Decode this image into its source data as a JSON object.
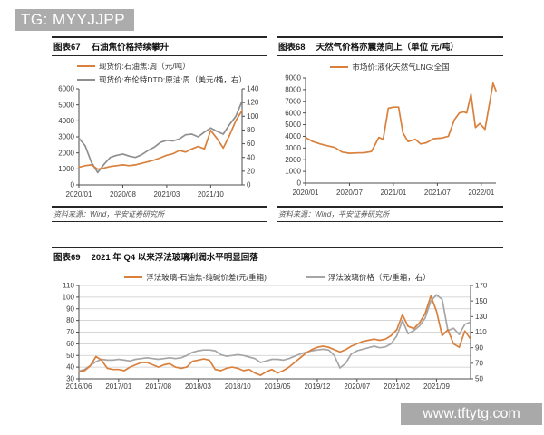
{
  "header": {
    "badge": "TG: MYYJJPP"
  },
  "watermark": {
    "text": "www.tftytg.com"
  },
  "chart_data": [
    {
      "id": "fig67",
      "type": "line",
      "label": "图表67",
      "title": "石油焦价格持续攀升",
      "source": "资料来源：Wind，平安证券研究所",
      "grid": false,
      "xmax": 26,
      "x_ticks": [
        {
          "label": "2020/01",
          "x": 0
        },
        {
          "label": "2020/08",
          "x": 7
        },
        {
          "label": "2021/03",
          "x": 14
        },
        {
          "label": "2021/10",
          "x": 21
        }
      ],
      "left_axis": {
        "ticks": [
          0,
          1000,
          2000,
          3000,
          4000,
          5000,
          6000
        ]
      },
      "right_axis": {
        "ticks": [
          0,
          20,
          40,
          60,
          80,
          100,
          120,
          140
        ]
      },
      "series": [
        {
          "name": "现货价:石油焦:周（元/吨）",
          "color": "#d9803d",
          "axis": "left",
          "values": [
            1100,
            1200,
            1250,
            980,
            1050,
            1150,
            1200,
            1250,
            1200,
            1250,
            1350,
            1450,
            1550,
            1700,
            1850,
            1950,
            2150,
            2050,
            2250,
            2400,
            2250,
            3400,
            2900,
            2300,
            3100,
            4000,
            4650
          ]
        },
        {
          "name": "现货价:布伦特DTD:原油:周（美元/桶，右）",
          "color": "#8f8f8f",
          "axis": "right",
          "values": [
            68,
            57,
            33,
            18,
            30,
            40,
            43,
            45,
            42,
            40,
            44,
            50,
            55,
            62,
            65,
            64,
            67,
            73,
            74,
            70,
            77,
            83,
            78,
            74,
            88,
            100,
            122
          ]
        }
      ]
    },
    {
      "id": "fig68",
      "type": "line",
      "label": "图表68",
      "title": "天然气价格亦震荡向上（单位 元/吨）",
      "source": "资料来源：Wind，平安证券研究所",
      "grid": false,
      "xmax": 26,
      "x_ticks": [
        {
          "label": "2020/01",
          "x": 0
        },
        {
          "label": "2020/07",
          "x": 6
        },
        {
          "label": "2021/01",
          "x": 12
        },
        {
          "label": "2021/07",
          "x": 18
        },
        {
          "label": "2022/01",
          "x": 24
        }
      ],
      "left_axis": {
        "ticks": [
          0,
          1000,
          2000,
          3000,
          4000,
          5000,
          6000,
          7000,
          8000,
          9000
        ]
      },
      "right_axis": null,
      "series": [
        {
          "name": "市场价:液化天然气LNG:全国",
          "color": "#d9803d",
          "axis": "left",
          "x": [
            0,
            1,
            2,
            3,
            4,
            5,
            6,
            7,
            8,
            9,
            10,
            10.6,
            11.3,
            12,
            12.7,
            13.3,
            14,
            15,
            15.7,
            16.5,
            17.5,
            18.5,
            19.5,
            20.3,
            21,
            21.6,
            22,
            22.6,
            23.2,
            23.8,
            24.5,
            25.6,
            26
          ],
          "values": [
            3900,
            3550,
            3350,
            3200,
            3050,
            2650,
            2550,
            2580,
            2600,
            2700,
            3900,
            3750,
            6400,
            6500,
            6500,
            4300,
            3550,
            3750,
            3350,
            3450,
            3800,
            3850,
            4000,
            5400,
            6000,
            6100,
            6000,
            7600,
            4750,
            5100,
            4600,
            8550,
            7900
          ]
        }
      ]
    },
    {
      "id": "fig69",
      "type": "line",
      "label": "图表69",
      "title": "2021 年 Q4 以来浮法玻璃利润水平明显回落",
      "source": "",
      "grid": true,
      "xmax": 69,
      "x_ticks": [
        {
          "label": "2016/06",
          "x": 0
        },
        {
          "label": "2017/01",
          "x": 7
        },
        {
          "label": "2017/08",
          "x": 14
        },
        {
          "label": "2018/03",
          "x": 21
        },
        {
          "label": "2018/10",
          "x": 28
        },
        {
          "label": "2019/05",
          "x": 35
        },
        {
          "label": "2019/12",
          "x": 42
        },
        {
          "label": "2020/07",
          "x": 49
        },
        {
          "label": "2021/02",
          "x": 56
        },
        {
          "label": "2021/09",
          "x": 63
        }
      ],
      "left_axis": {
        "ticks": [
          30,
          40,
          50,
          60,
          70,
          80,
          90,
          100,
          110
        ]
      },
      "right_axis": {
        "ticks": [
          50,
          70,
          90,
          110,
          130,
          150,
          170
        ]
      },
      "series": [
        {
          "name": "浮法玻璃-石油焦-纯碱价差(元/重箱)",
          "color": "#d9803d",
          "axis": "left",
          "values": [
            36,
            37,
            41,
            49,
            46,
            39,
            38,
            38,
            37,
            40,
            42,
            44,
            44,
            42,
            40,
            42,
            43,
            40,
            39,
            40,
            45,
            46,
            47,
            46,
            38,
            37,
            39,
            40,
            39,
            37,
            38,
            35,
            33,
            36,
            38,
            35,
            37,
            40,
            44,
            48,
            52,
            55,
            57,
            58,
            57,
            55,
            53,
            55,
            58,
            60,
            62,
            63,
            64,
            63,
            64,
            67,
            72,
            85,
            75,
            73,
            78,
            86,
            101,
            88,
            67,
            72,
            60,
            57,
            71,
            64
          ]
        },
        {
          "name": "浮法玻璃价格（元/重箱，右）",
          "color": "#a6a6a6",
          "axis": "right",
          "values": [
            60,
            62,
            67,
            72,
            75,
            74,
            74,
            75,
            74,
            73,
            75,
            76,
            77,
            76,
            75,
            76,
            77,
            76,
            77,
            80,
            84,
            86,
            87,
            87,
            86,
            81,
            79,
            80,
            81,
            80,
            78,
            76,
            71,
            73,
            75,
            75,
            74,
            76,
            79,
            82,
            84,
            86,
            87,
            88,
            87,
            80,
            64,
            70,
            82,
            86,
            88,
            90,
            92,
            90,
            91,
            95,
            105,
            125,
            108,
            112,
            118,
            128,
            150,
            158,
            152,
            112,
            115,
            107,
            120,
            123
          ]
        }
      ]
    }
  ]
}
